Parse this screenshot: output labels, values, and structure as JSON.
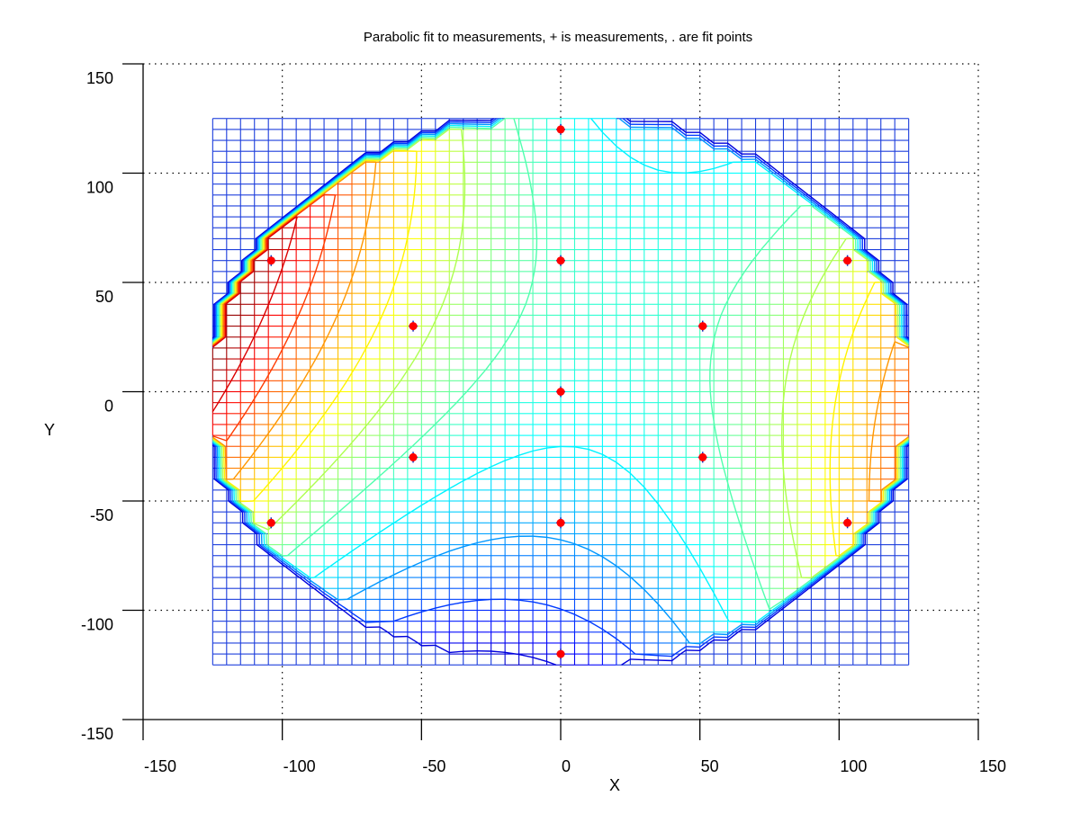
{
  "chart_data": {
    "type": "mesh-contour",
    "title": "Parabolic fit to measurements, + is measurements, . are fit points",
    "xlabel": "X",
    "ylabel": "Y",
    "xlim": [
      -150,
      150
    ],
    "ylim": [
      -150,
      150
    ],
    "xticks": [
      "-150",
      "-100",
      "-50",
      "0",
      "50",
      "100",
      "150"
    ],
    "yticks": [
      "150",
      "100",
      "50",
      "0",
      "-50",
      "-100",
      "-150"
    ],
    "xtick_values": [
      -150,
      -100,
      -50,
      0,
      50,
      100,
      150
    ],
    "ytick_values": [
      150,
      100,
      50,
      0,
      -50,
      -100,
      -150
    ],
    "grid": true,
    "mesh_range": [
      -125,
      125
    ],
    "mesh_step": 5,
    "fit_region_radius": 127,
    "colormap": "jet",
    "measurements": [
      {
        "x": 0,
        "y": 120
      },
      {
        "x": -104,
        "y": 60
      },
      {
        "x": 0,
        "y": 60
      },
      {
        "x": 103,
        "y": 60
      },
      {
        "x": -53,
        "y": 30
      },
      {
        "x": 51,
        "y": 30
      },
      {
        "x": 0,
        "y": 0
      },
      {
        "x": -53,
        "y": -30
      },
      {
        "x": 51,
        "y": -30
      },
      {
        "x": -104,
        "y": -60
      },
      {
        "x": 0,
        "y": -60
      },
      {
        "x": 103,
        "y": -60
      },
      {
        "x": 0,
        "y": -120
      }
    ],
    "marker_color": "#ff0000",
    "contour_levels": 10
  }
}
